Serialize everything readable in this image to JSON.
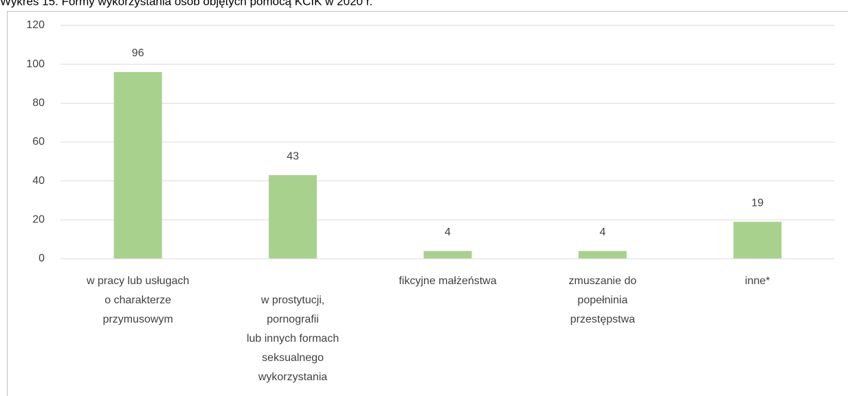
{
  "chart_data": {
    "type": "bar",
    "title": "Wykres 15. Formy wykorzystania osób objętych pomocą KCIK w 2020 r.",
    "categories": [
      "w pracy lub usługach\no charakterze\nprzymusowym",
      "w prostytucji,\npornografii\nlub innych formach\nseksualnego\nwykorzystania",
      "fikcyjne małżeństwa",
      "zmuszanie do\npopełninia\nprzestępstwa",
      "inne*"
    ],
    "values": [
      96,
      43,
      4,
      4,
      19
    ],
    "color": "#a9d18e",
    "ylim": [
      0,
      120
    ],
    "yticks": [
      0,
      20,
      40,
      60,
      80,
      100,
      120
    ],
    "grid": true
  }
}
